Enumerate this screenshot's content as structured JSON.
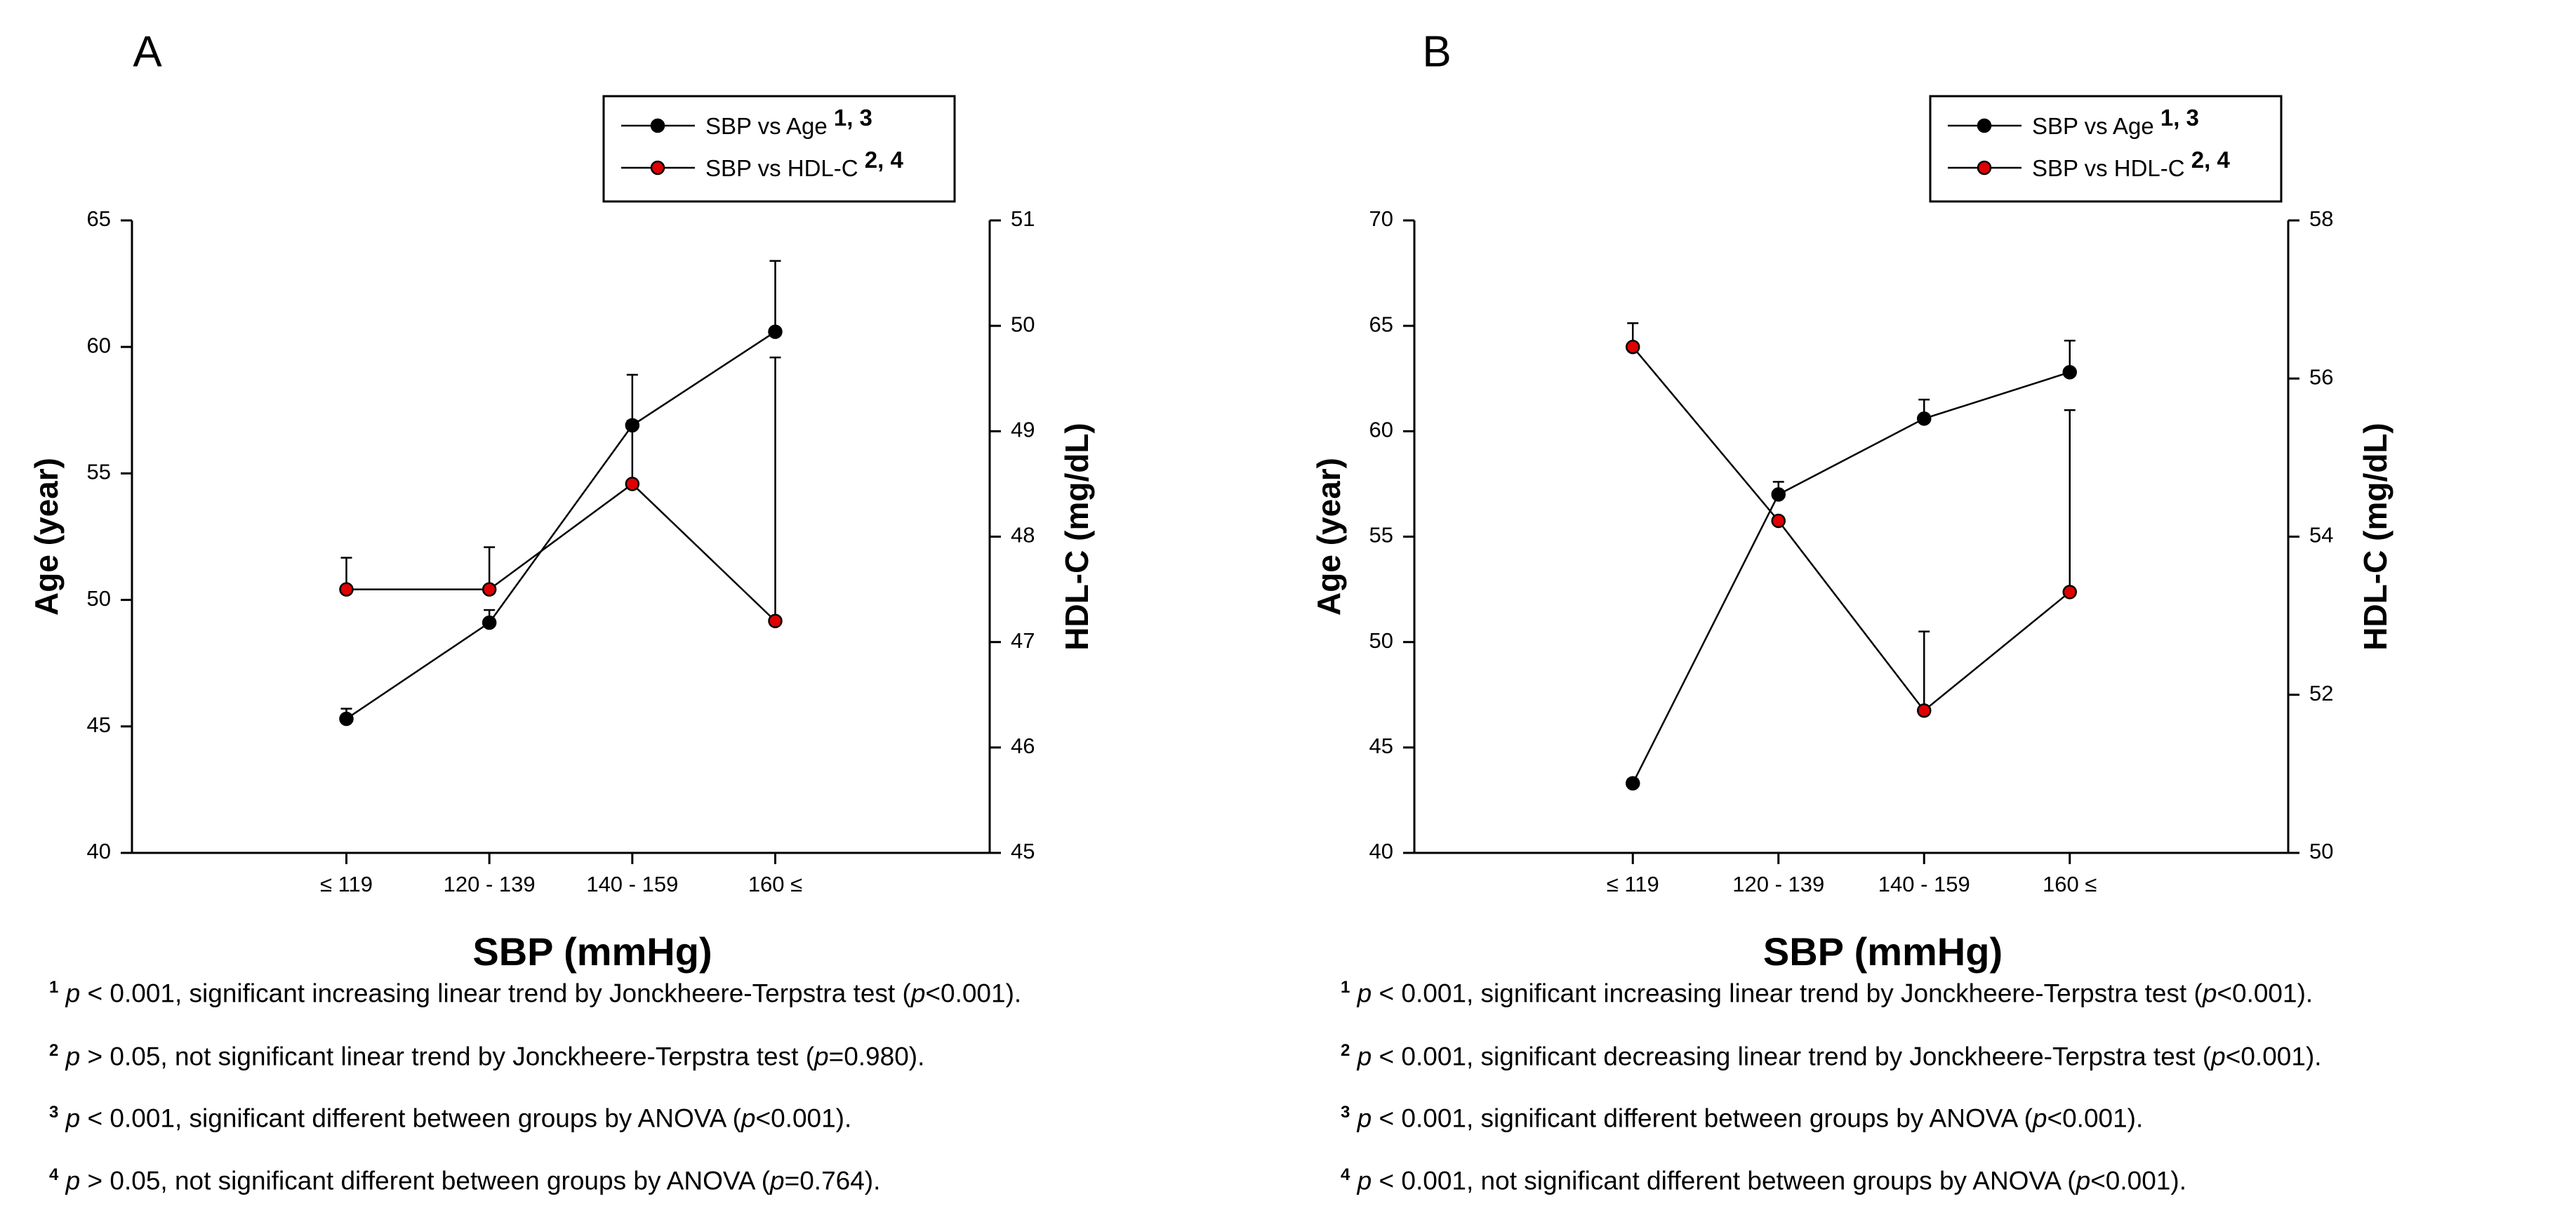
{
  "colors": {
    "age_marker": "#000000",
    "hdl_marker": "#e00000",
    "line": "#000000"
  },
  "chart_data": [
    {
      "panel": "A",
      "type": "line",
      "xlabel": "SBP (mmHg)",
      "categories": [
        "≤ 119",
        "120 - 139",
        "140 - 159",
        "160 ≤"
      ],
      "left_axis": {
        "label": "Age (year)",
        "ylim": [
          40,
          65
        ],
        "ticks": [
          "40",
          "45",
          "50",
          "55",
          "60",
          "65"
        ],
        "tick_values": [
          40,
          45,
          50,
          55,
          60,
          65
        ]
      },
      "right_axis": {
        "label": "HDL-C (mg/dL)",
        "ylim": [
          45,
          51
        ],
        "ticks": [
          "45",
          "46",
          "47",
          "48",
          "49",
          "50",
          "51"
        ],
        "tick_values": [
          45,
          46,
          47,
          48,
          49,
          50,
          51
        ]
      },
      "series": [
        {
          "name": "SBP vs Age",
          "sup": "1, 3",
          "axis": "left",
          "marker": "black",
          "values": [
            45.3,
            49.1,
            56.9,
            60.6
          ],
          "errors": [
            0.4,
            0.5,
            2.0,
            2.8
          ]
        },
        {
          "name": "SBP vs HDL-C",
          "sup": "2, 4",
          "axis": "right",
          "marker": "red",
          "values": [
            47.5,
            47.5,
            48.5,
            47.2
          ],
          "errors": [
            0.3,
            0.4,
            0.6,
            2.5
          ]
        }
      ],
      "legend": [
        {
          "text": "SBP vs Age",
          "sup": "1, 3"
        },
        {
          "text": "SBP vs HDL-C",
          "sup": "2, 4"
        }
      ],
      "legend_position": "top-right"
    },
    {
      "panel": "B",
      "type": "line",
      "xlabel": "SBP (mmHg)",
      "categories": [
        "≤ 119",
        "120 - 139",
        "140 - 159",
        "160 ≤"
      ],
      "left_axis": {
        "label": "Age (year)",
        "ylim": [
          40,
          70
        ],
        "ticks": [
          "40",
          "45",
          "50",
          "55",
          "60",
          "65",
          "70"
        ],
        "tick_values": [
          40,
          45,
          50,
          55,
          60,
          65,
          70
        ]
      },
      "right_axis": {
        "label": "HDL-C (mg/dL)",
        "ylim": [
          50,
          58
        ],
        "ticks": [
          "50",
          "52",
          "54",
          "56",
          "58"
        ],
        "tick_values": [
          50,
          52,
          54,
          56,
          58
        ]
      },
      "series": [
        {
          "name": "SBP vs Age",
          "sup": "1, 3",
          "axis": "left",
          "marker": "black",
          "values": [
            43.3,
            57.0,
            60.6,
            62.8
          ],
          "errors": [
            0.2,
            0.6,
            0.9,
            1.5
          ]
        },
        {
          "name": "SBP vs HDL-C",
          "sup": "2, 4",
          "axis": "right",
          "marker": "red",
          "values": [
            56.4,
            54.2,
            51.8,
            53.3
          ],
          "errors": [
            0.3,
            0.0,
            1.0,
            2.3
          ]
        }
      ],
      "legend": [
        {
          "text": "SBP vs Age",
          "sup": "1, 3"
        },
        {
          "text": "SBP vs HDL-C",
          "sup": "2, 4"
        }
      ],
      "legend_position": "top-right"
    }
  ],
  "footnotes": {
    "A": [
      {
        "num": "1",
        "p": "p",
        "pre": " < 0.001, significant increasing linear trend by Jonckheere-Terpstra test (",
        "p2": "p",
        "post": "<0.001)."
      },
      {
        "num": "2",
        "p": "p",
        "pre": " > 0.05, not significant linear trend by Jonckheere-Terpstra test (",
        "p2": "p",
        "post": "=0.980)."
      },
      {
        "num": "3",
        "p": "p",
        "pre": " < 0.001, significant different between groups by ANOVA (",
        "p2": "p",
        "post": "<0.001)."
      },
      {
        "num": "4",
        "p": "p",
        "pre": " > 0.05, not significant different between groups by ANOVA (",
        "p2": "p",
        "post": "=0.764)."
      }
    ],
    "B": [
      {
        "num": "1",
        "p": "p",
        "pre": " < 0.001, significant increasing linear trend by Jonckheere-Terpstra test (",
        "p2": "p",
        "post": "<0.001)."
      },
      {
        "num": "2",
        "p": "p",
        "pre": " < 0.001, significant decreasing linear trend by Jonckheere-Terpstra test (",
        "p2": "p",
        "post": "<0.001)."
      },
      {
        "num": "3",
        "p": "p",
        "pre": " < 0.001, significant different between groups by ANOVA (",
        "p2": "p",
        "post": "<0.001)."
      },
      {
        "num": "4",
        "p": "p",
        "pre": " < 0.001, not significant different between groups by ANOVA (",
        "p2": "p",
        "post": "<0.001)."
      }
    ]
  }
}
